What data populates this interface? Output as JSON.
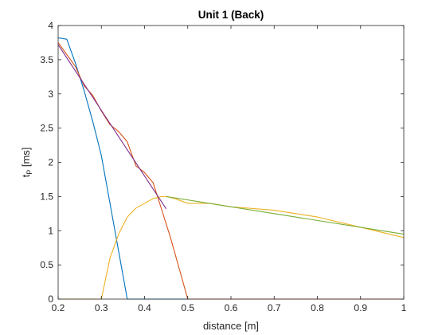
{
  "chart_data": {
    "type": "line",
    "title": "Unit 1 (Back)",
    "xlabel": "distance [m]",
    "ylabel_main": "t",
    "ylabel_sub": "P",
    "ylabel_unit": " [ms]",
    "xlim": [
      0.2,
      1.0
    ],
    "ylim": [
      0,
      4
    ],
    "xticks": [
      0.2,
      0.3,
      0.4,
      0.5,
      0.6,
      0.7,
      0.8,
      0.9,
      1.0
    ],
    "xtick_labels": [
      "0.2",
      "0.3",
      "0.4",
      "0.5",
      "0.6",
      "0.7",
      "0.8",
      "0.9",
      "1"
    ],
    "yticks": [
      0,
      0.5,
      1,
      1.5,
      2,
      2.5,
      3,
      3.5,
      4
    ],
    "ytick_labels": [
      "0",
      "0.5",
      "1",
      "1.5",
      "2",
      "2.5",
      "3",
      "3.5",
      "4"
    ],
    "grid": false,
    "series": [
      {
        "color": "#0072BD",
        "x": [
          0.2,
          0.22,
          0.24,
          0.26,
          0.28,
          0.3,
          0.32,
          0.34,
          0.36,
          0.38,
          0.4,
          0.5,
          0.6,
          0.7,
          0.8,
          0.9,
          1.0
        ],
        "y": [
          3.82,
          3.8,
          3.45,
          3.05,
          2.6,
          2.1,
          1.4,
          0.7,
          0.0,
          0.0,
          0.0,
          0.0,
          0.0,
          0.0,
          0.0,
          0.0,
          0.0
        ]
      },
      {
        "color": "#D95319",
        "x": [
          0.2,
          0.24,
          0.26,
          0.28,
          0.3,
          0.32,
          0.34,
          0.36,
          0.38,
          0.4,
          0.42,
          0.44,
          0.46,
          0.48,
          0.5,
          0.6,
          0.7,
          0.8,
          0.9,
          1.0
        ],
        "y": [
          3.75,
          3.4,
          3.12,
          2.98,
          2.75,
          2.55,
          2.45,
          2.3,
          1.95,
          1.85,
          1.7,
          1.3,
          0.9,
          0.45,
          0.0,
          0.0,
          0.0,
          0.0,
          0.0,
          0.0
        ]
      },
      {
        "color": "#EDB120",
        "x": [
          0.2,
          0.3,
          0.32,
          0.34,
          0.36,
          0.38,
          0.4,
          0.42,
          0.44,
          0.45,
          0.47,
          0.5,
          0.55,
          0.6,
          0.7,
          0.8,
          0.9,
          1.0
        ],
        "y": [
          0.0,
          0.0,
          0.6,
          0.95,
          1.2,
          1.33,
          1.4,
          1.47,
          1.5,
          1.5,
          1.47,
          1.4,
          1.4,
          1.35,
          1.3,
          1.2,
          1.05,
          0.9
        ]
      },
      {
        "color": "#7E2F8E",
        "x": [
          0.2,
          0.45
        ],
        "y": [
          3.72,
          1.32
        ]
      },
      {
        "color": "#77AC30",
        "x": [
          0.45,
          1.0
        ],
        "y": [
          1.5,
          0.95
        ]
      }
    ]
  }
}
